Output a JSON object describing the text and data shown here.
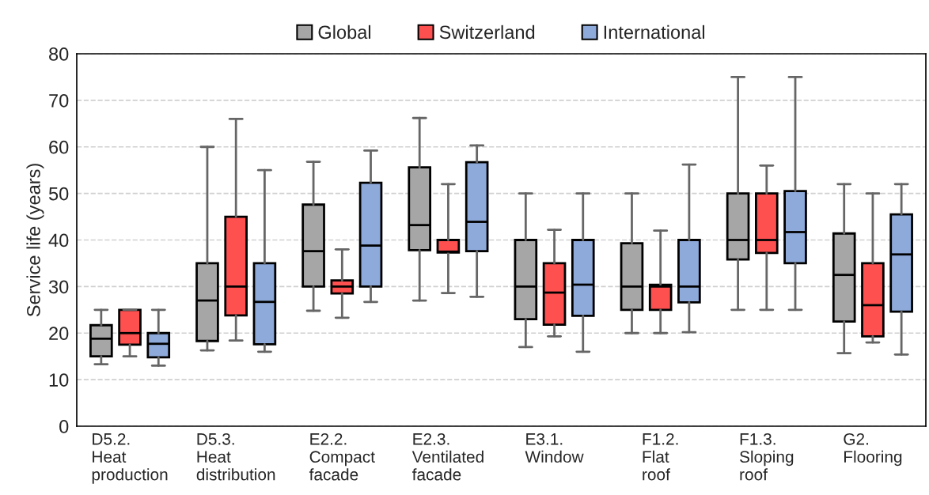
{
  "chart_data": {
    "type": "box",
    "ylabel": "Service life (years)",
    "categories": [
      "D5.2.\nHeat\nproduction",
      "D5.3.\nHeat\ndistribution",
      "E2.2.\nCompact\nfacade",
      "E2.3.\nVentilated\nfacade",
      "E3.1.\nWindow",
      "F1.2.\nFlat\nroof",
      "F1.3.\nSloping\nroof",
      "G2.\nFlooring"
    ],
    "series": [
      {
        "name": "Global",
        "color": "#a6a6a6",
        "boxes": [
          {
            "low": 13.3,
            "q1": 15,
            "median": 18.8,
            "q3": 21.7,
            "high": 25
          },
          {
            "low": 16.3,
            "q1": 18.3,
            "median": 27,
            "q3": 35,
            "high": 60
          },
          {
            "low": 24.8,
            "q1": 30,
            "median": 37.6,
            "q3": 47.6,
            "high": 56.8
          },
          {
            "low": 27,
            "q1": 37.8,
            "median": 43.2,
            "q3": 55.6,
            "high": 66.2
          },
          {
            "low": 17,
            "q1": 23,
            "median": 30,
            "q3": 40,
            "high": 50
          },
          {
            "low": 20,
            "q1": 25,
            "median": 30,
            "q3": 39.3,
            "high": 50
          },
          {
            "low": 25,
            "q1": 35.8,
            "median": 40,
            "q3": 50,
            "high": 75
          },
          {
            "low": 15.7,
            "q1": 22.5,
            "median": 32.5,
            "q3": 41.4,
            "high": 52
          }
        ]
      },
      {
        "name": "Switzerland",
        "color": "#ff5050",
        "boxes": [
          {
            "low": 15,
            "q1": 17.5,
            "median": 20,
            "q3": 25,
            "high": 25
          },
          {
            "low": 18.4,
            "q1": 23.8,
            "median": 30,
            "q3": 45,
            "high": 66
          },
          {
            "low": 23.3,
            "q1": 28.5,
            "median": 30,
            "q3": 31.3,
            "high": 38
          },
          {
            "low": 28.6,
            "q1": 37.3,
            "median": 37.5,
            "q3": 40,
            "high": 52
          },
          {
            "low": 19.3,
            "q1": 21.8,
            "median": 28.7,
            "q3": 35,
            "high": 42.2
          },
          {
            "low": 20,
            "q1": 25,
            "median": 30,
            "q3": 30.4,
            "high": 42
          },
          {
            "low": 25,
            "q1": 37.2,
            "median": 40,
            "q3": 50,
            "high": 56
          },
          {
            "low": 18,
            "q1": 19.3,
            "median": 26,
            "q3": 35,
            "high": 50
          }
        ]
      },
      {
        "name": "International",
        "color": "#8eaadb",
        "boxes": [
          {
            "low": 13,
            "q1": 14.8,
            "median": 17.7,
            "q3": 20,
            "high": 25
          },
          {
            "low": 16,
            "q1": 17.6,
            "median": 26.7,
            "q3": 35,
            "high": 55
          },
          {
            "low": 26.7,
            "q1": 30,
            "median": 38.8,
            "q3": 52.3,
            "high": 59.2
          },
          {
            "low": 27.8,
            "q1": 37.6,
            "median": 43.9,
            "q3": 56.7,
            "high": 60.3
          },
          {
            "low": 16,
            "q1": 23.7,
            "median": 30.4,
            "q3": 40,
            "high": 50
          },
          {
            "low": 20.2,
            "q1": 26.6,
            "median": 30,
            "q3": 40,
            "high": 56.2
          },
          {
            "low": 25,
            "q1": 35,
            "median": 41.7,
            "q3": 50.5,
            "high": 75
          },
          {
            "low": 15.4,
            "q1": 24.6,
            "median": 36.9,
            "q3": 45.5,
            "high": 52
          }
        ]
      }
    ],
    "ylim": [
      0,
      80
    ],
    "yticks": [
      0,
      10,
      20,
      30,
      40,
      50,
      60,
      70,
      80
    ],
    "grid": "y",
    "legend": "top"
  }
}
